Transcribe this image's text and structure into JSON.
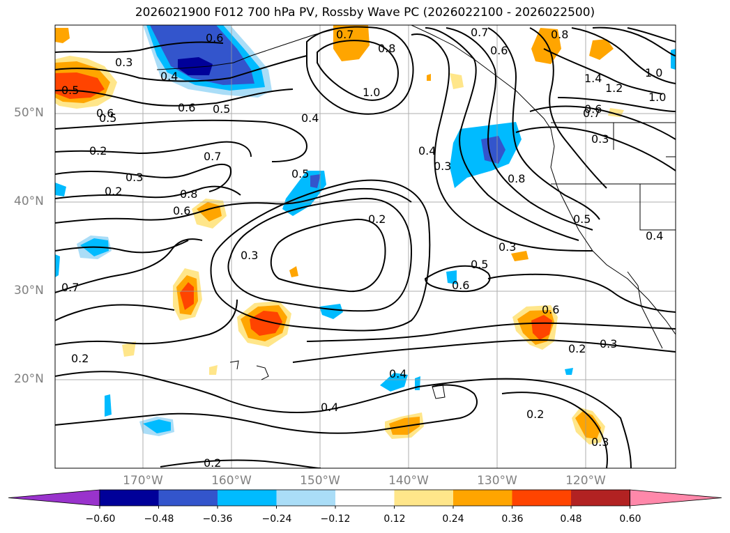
{
  "title": "2026021900 F012 700 hPa PV, Rossby Wave PC (2026022100 - 2026022500)",
  "lat_labels": [
    "50°N",
    "40°N",
    "30°N",
    "20°N"
  ],
  "lon_labels": [
    "170°W",
    "160°W",
    "150°W",
    "140°W",
    "130°W",
    "120°W"
  ],
  "colorbar": {
    "ticks": [
      "−0.60",
      "−0.48",
      "−0.36",
      "−0.24",
      "−0.12",
      "0.12",
      "0.24",
      "0.36",
      "0.48",
      "0.60"
    ],
    "colors": [
      "#9933cc",
      "#000099",
      "#3355cc",
      "#00bbff",
      "#aaddf7",
      "#ffffff",
      "#ffe68a",
      "#ffa500",
      "#ff4400",
      "#b22222",
      "#ff88aa"
    ]
  },
  "contour_labels": [
    "0.6",
    "0.7",
    "0.8",
    "0.7",
    "0.6",
    "0.8",
    "0.3",
    "0.4",
    "0.5",
    "0.5",
    "0.6",
    "0.5",
    "1.0",
    "0.4",
    "0.7",
    "0.2",
    "0.3",
    "0.8",
    "0.6",
    "0.5",
    "0.2",
    "0.3",
    "0.7",
    "0.4",
    "0.3",
    "0.6",
    "0.8",
    "0.5",
    "0.2",
    "0.4",
    "0.3",
    "0.5",
    "0.6",
    "0.6",
    "0.2",
    "0.3",
    "0.4",
    "0.4",
    "0.2",
    "0.3",
    "0.2",
    "0.2",
    "1.4",
    "1.2",
    "1.0",
    "1.0",
    "0.7",
    "0.3",
    "0.6"
  ]
}
